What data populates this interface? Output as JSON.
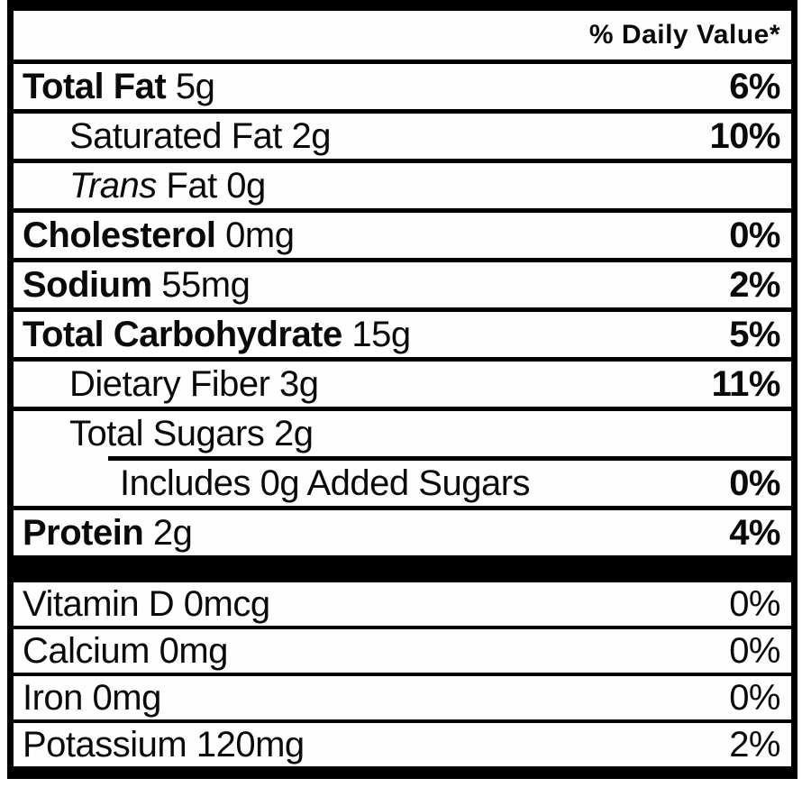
{
  "label": {
    "daily_value_header": "% Daily Value*",
    "colors": {
      "ink": "#0a0a0a",
      "rule": "#000000",
      "background": "#ffffff"
    },
    "main_rows": [
      {
        "parts": [
          {
            "t": "Total Fat",
            "b": true
          },
          {
            "t": " 5g"
          }
        ],
        "dv": "6%",
        "dv_bold": true,
        "indent": 0
      },
      {
        "parts": [
          {
            "t": "Saturated Fat 2g"
          }
        ],
        "dv": "10%",
        "dv_bold": true,
        "indent": 1
      },
      {
        "parts": [
          {
            "t": "Trans",
            "i": true
          },
          {
            "t": " Fat 0g"
          }
        ],
        "dv": "",
        "dv_bold": false,
        "indent": 1
      },
      {
        "parts": [
          {
            "t": "Cholesterol",
            "b": true
          },
          {
            "t": " 0mg"
          }
        ],
        "dv": "0%",
        "dv_bold": true,
        "indent": 0
      },
      {
        "parts": [
          {
            "t": "Sodium",
            "b": true
          },
          {
            "t": " 55mg"
          }
        ],
        "dv": "2%",
        "dv_bold": true,
        "indent": 0
      },
      {
        "parts": [
          {
            "t": "Total Carbohydrate",
            "b": true
          },
          {
            "t": " 15g"
          }
        ],
        "dv": "5%",
        "dv_bold": true,
        "indent": 0
      },
      {
        "parts": [
          {
            "t": "Dietary Fiber 3g"
          }
        ],
        "dv": "11%",
        "dv_bold": true,
        "indent": 1
      },
      {
        "parts": [
          {
            "t": "Total Sugars 2g"
          }
        ],
        "dv": "",
        "dv_bold": false,
        "indent": 1
      },
      {
        "parts": [
          {
            "t": "Includes 0g Added Sugars"
          }
        ],
        "dv": "0%",
        "dv_bold": true,
        "indent": 2,
        "sep_indent": true
      },
      {
        "parts": [
          {
            "t": "Protein",
            "b": true
          },
          {
            "t": " 2g"
          }
        ],
        "dv": "4%",
        "dv_bold": true,
        "indent": 0
      }
    ],
    "vitamin_rows": [
      {
        "parts": [
          {
            "t": "Vitamin D 0mcg"
          }
        ],
        "dv": "0%",
        "dv_bold": false,
        "indent": 0
      },
      {
        "parts": [
          {
            "t": "Calcium 0mg"
          }
        ],
        "dv": "0%",
        "dv_bold": false,
        "indent": 0
      },
      {
        "parts": [
          {
            "t": "Iron 0mg"
          }
        ],
        "dv": "0%",
        "dv_bold": false,
        "indent": 0
      },
      {
        "parts": [
          {
            "t": "Potassium 120mg"
          }
        ],
        "dv": "2%",
        "dv_bold": false,
        "indent": 0
      }
    ]
  }
}
